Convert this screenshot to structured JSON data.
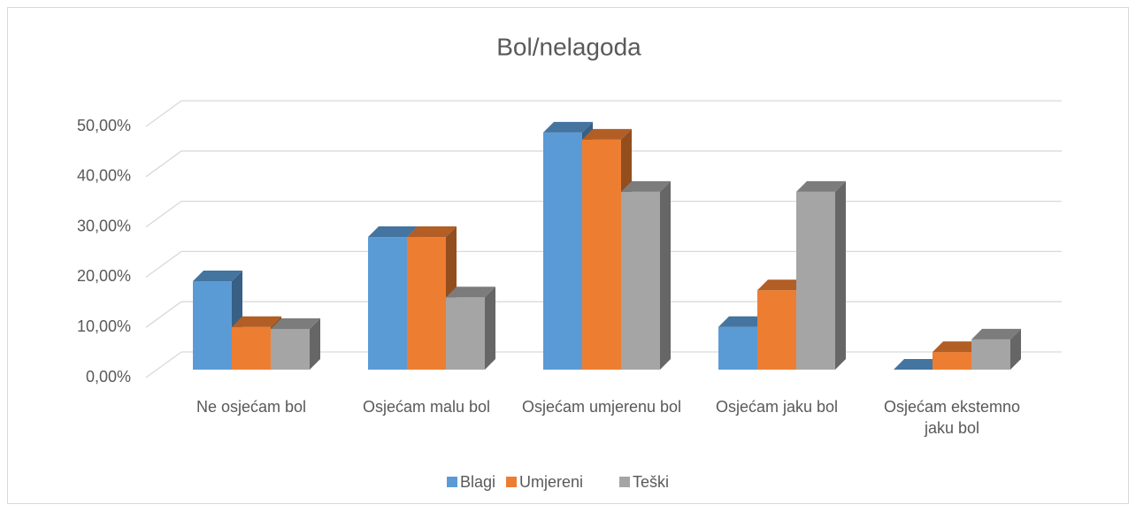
{
  "chart_data": {
    "type": "bar3d",
    "title": "Bol/nelagoda",
    "categories": [
      "Ne osjećam bol",
      "Osjećam malu bol",
      "Osjećam umjerenu bol",
      "Osjećam jaku bol",
      "Osjećam ekstemno jaku bol"
    ],
    "series": [
      {
        "name": "Blagi",
        "color": "#5b9bd5",
        "values": [
          17.6,
          26.4,
          47.2,
          8.5,
          0
        ]
      },
      {
        "name": "Umjereni",
        "color": "#ed7d31",
        "values": [
          8.5,
          26.4,
          45.8,
          15.8,
          3.5
        ]
      },
      {
        "name": "Teški",
        "color": "#a5a5a5",
        "values": [
          8.1,
          14.4,
          35.4,
          35.4,
          6.0
        ]
      }
    ],
    "ylim": [
      0,
      50
    ],
    "yticks": [
      {
        "value": 0,
        "label": "0,00%"
      },
      {
        "value": 10,
        "label": "10,00%"
      },
      {
        "value": 20,
        "label": "20,00%"
      },
      {
        "value": 30,
        "label": "30,00%"
      },
      {
        "value": 40,
        "label": "40,00%"
      },
      {
        "value": 50,
        "label": "50,00%"
      }
    ],
    "grid": true,
    "legend": "bottom"
  }
}
